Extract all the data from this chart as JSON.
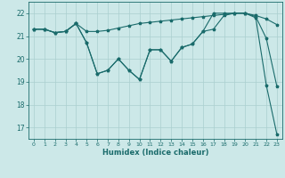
{
  "xlabel": "Humidex (Indice chaleur)",
  "ylabel": "",
  "background_color": "#cce8e8",
  "grid_color": "#aacfcf",
  "line_color": "#1a6b6b",
  "xlim": [
    -0.5,
    23.5
  ],
  "ylim": [
    16.5,
    22.5
  ],
  "yticks": [
    17,
    18,
    19,
    20,
    21,
    22
  ],
  "xticks": [
    0,
    1,
    2,
    3,
    4,
    5,
    6,
    7,
    8,
    9,
    10,
    11,
    12,
    13,
    14,
    15,
    16,
    17,
    18,
    19,
    20,
    21,
    22,
    23
  ],
  "series1_x": [
    0,
    1,
    2,
    3,
    4,
    5,
    6,
    7,
    8,
    9,
    10,
    11,
    12,
    13,
    14,
    15,
    16,
    17,
    18,
    19,
    20,
    21,
    22,
    23
  ],
  "series1_y": [
    21.3,
    21.3,
    21.15,
    21.2,
    21.55,
    21.2,
    21.2,
    21.25,
    21.35,
    21.45,
    21.55,
    21.6,
    21.65,
    21.7,
    21.75,
    21.8,
    21.85,
    21.9,
    21.95,
    22.0,
    22.0,
    21.9,
    21.75,
    21.5
  ],
  "series2_x": [
    0,
    1,
    2,
    3,
    4,
    5,
    6,
    7,
    8,
    9,
    10,
    11,
    12,
    13,
    14,
    15,
    16,
    17,
    18,
    19,
    20,
    21,
    22,
    23
  ],
  "series2_y": [
    21.3,
    21.3,
    21.15,
    21.2,
    21.55,
    20.7,
    19.35,
    19.5,
    20.0,
    19.5,
    19.1,
    20.4,
    20.4,
    19.9,
    20.5,
    20.65,
    21.2,
    21.3,
    21.9,
    22.0,
    22.0,
    21.85,
    20.9,
    18.8
  ],
  "series3_x": [
    0,
    1,
    2,
    3,
    4,
    5,
    6,
    7,
    8,
    9,
    10,
    11,
    12,
    13,
    14,
    15,
    16,
    17,
    18,
    19,
    20,
    21,
    22,
    23
  ],
  "series3_y": [
    21.3,
    21.3,
    21.15,
    21.2,
    21.55,
    20.7,
    19.35,
    19.5,
    20.0,
    19.5,
    19.1,
    20.4,
    20.4,
    19.9,
    20.5,
    20.65,
    21.2,
    22.0,
    22.0,
    22.0,
    22.0,
    21.8,
    18.85,
    16.7
  ]
}
